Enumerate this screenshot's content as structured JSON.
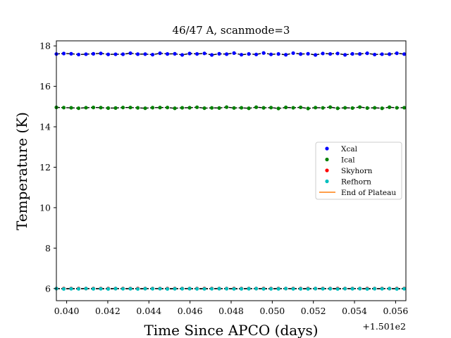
{
  "chart_data": {
    "type": "scatter",
    "title": "46/47 A, scanmode=3",
    "xlabel": "Time Since APCO (days)",
    "ylabel": "Temperature (K)",
    "x_offset_label": "+1.501e2",
    "xlim": [
      150.1395,
      150.1565
    ],
    "ylim": [
      5.4,
      18.25
    ],
    "xticks": [
      150.14,
      150.142,
      150.144,
      150.146,
      150.148,
      150.15,
      150.152,
      150.154,
      150.156
    ],
    "xtick_labels": [
      "0.040",
      "0.042",
      "0.044",
      "0.046",
      "0.048",
      "0.050",
      "0.052",
      "0.054",
      "0.056"
    ],
    "yticks": [
      6,
      8,
      10,
      12,
      14,
      16,
      18
    ],
    "ytick_labels": [
      "6",
      "8",
      "10",
      "12",
      "14",
      "16",
      "18"
    ],
    "grid": false,
    "legend_position": "center-right",
    "series": [
      {
        "name": "Xcal",
        "color": "#0000ff",
        "kind": "points",
        "mean": 17.6,
        "amplitude": 0.05
      },
      {
        "name": "Ical",
        "color": "#008000",
        "kind": "points",
        "mean": 14.94,
        "amplitude": 0.035
      },
      {
        "name": "Skyhorn",
        "color": "#ff0000",
        "kind": "points",
        "mean": 6.0,
        "amplitude": 0.0
      },
      {
        "name": "Refhorn",
        "color": "#00bfbf",
        "kind": "points",
        "mean": 5.99,
        "amplitude": 0.01
      },
      {
        "name": "End of Plateau",
        "color": "#ff7f0e",
        "kind": "line"
      }
    ],
    "x_start": 150.1395,
    "x_step": 0.00036,
    "n_points": 48
  }
}
